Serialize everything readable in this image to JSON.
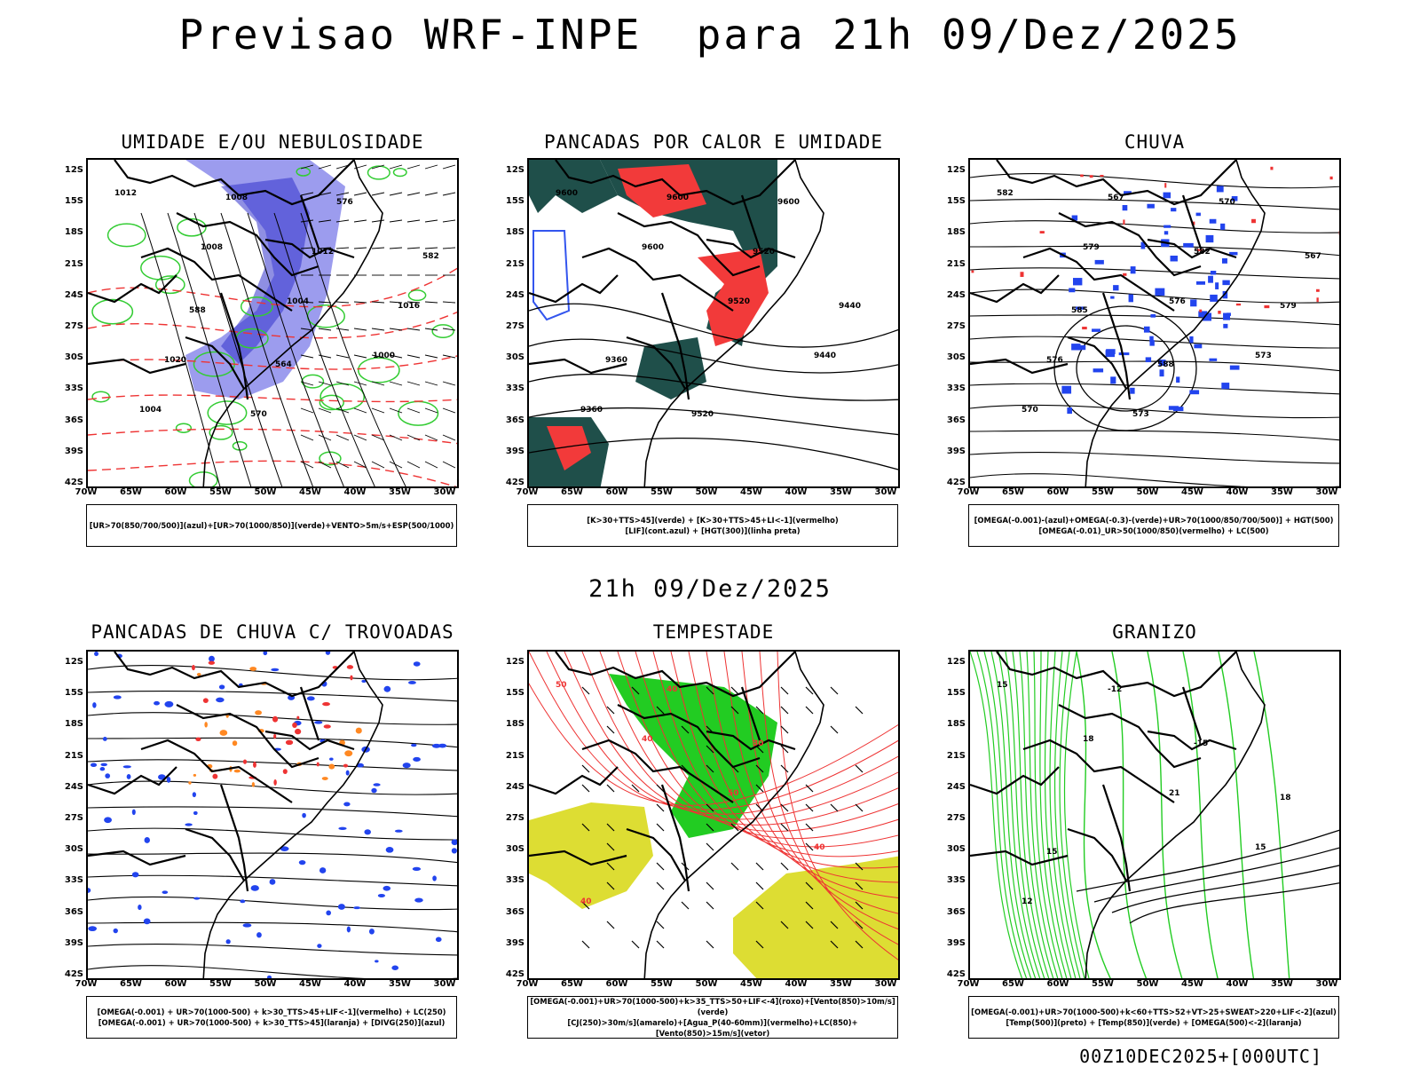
{
  "header": {
    "title": "Previsao WRF-INPE  para 21h 09/Dez/2025",
    "mid_label": "21h 09/Dez/2025",
    "footer": "00Z10DEC2025+[000UTC]"
  },
  "axes": {
    "lat_labels": [
      "12S",
      "15S",
      "18S",
      "21S",
      "24S",
      "27S",
      "30S",
      "33S",
      "36S",
      "39S",
      "42S"
    ],
    "lon_labels": [
      "70W",
      "65W",
      "60W",
      "55W",
      "50W",
      "45W",
      "40W",
      "35W",
      "30W"
    ]
  },
  "panels": [
    {
      "title": "UMIDADE E/OU NEBULOSIDADE",
      "legend": [
        "[UR>70(850/700/500)](azul)+[UR>70(1000/850)](verde)+VENTO>5m/s+ESP(500/1000)"
      ],
      "contour_labels": [
        "1012",
        "1008",
        "1004",
        "1000",
        "1004",
        "1008",
        "1012",
        "1016",
        "1020",
        "570",
        "576",
        "582",
        "588",
        "564"
      ],
      "colors": {
        "fill": "#7b7be8",
        "green": "#33cc33",
        "red": "#ee3333",
        "isobar": "#000000"
      }
    },
    {
      "title": "PANCADAS POR CALOR E UMIDADE",
      "legend": [
        "[K>30+TTS>45](verde) + [K>30+TTS>45+LI<-1](vermelho)",
        "[LIF](cont.azul) + [HGT(300)](linha preta)"
      ],
      "contour_labels": [
        "9600",
        "9600",
        "9520",
        "9440",
        "9360",
        "9600",
        "9520",
        "9440",
        "9360",
        "9520",
        "9600"
      ],
      "colors": {
        "dark": "#1f4f4a",
        "red": "#f23a3a",
        "blue": "#3355ee"
      }
    },
    {
      "title": "CHUVA",
      "legend": [
        "[OMEGA(-0.001)-(azul)+OMEGA(-0.3)-(verde)+UR>70(1000/850/700/500)] + HGT(500)",
        "[OMEGA(-0.01)_UR>50(1000/850)(vermelho) + LC(500)"
      ],
      "contour_labels": [
        "582",
        "579",
        "576",
        "573",
        "570",
        "567",
        "582",
        "579",
        "576",
        "573",
        "570",
        "567",
        "585",
        "588"
      ],
      "colors": {
        "blue": "#2244ee",
        "red": "#ee3333"
      }
    },
    {
      "title": "PANCADAS DE CHUVA C/ TROVOADAS",
      "legend": [
        "[OMEGA(-0.001) + UR>70(1000-500) + k>30_TTS>45+LIF<-1](vermelho) + LC(250)",
        "[OMEGA(-0.001) + UR>70(1000-500) + k>30_TTS>45](laranja) + [DIVG(250)](azul)"
      ],
      "contour_labels": [],
      "colors": {
        "blue": "#2244ee",
        "red": "#ee3333",
        "orange": "#ff8822"
      }
    },
    {
      "title": "TEMPESTADE",
      "legend": [
        "[OMEGA(-0.001)+UR>70(1000-500)+k>35_TTS>50+LIF<-4](roxo)+[Vento(850)>10m/s](verde)",
        "[CJ(250)>30m/s](amarelo)+[Agua_P(40-60mm)](vermelho)+LC(850)+[Vento(850)>15m/s](vetor)"
      ],
      "contour_labels": [
        "50",
        "40",
        "50",
        "40",
        "40",
        "40",
        "30"
      ],
      "colors": {
        "green": "#22cc22",
        "yellow": "#dddd33",
        "red": "#ee3333"
      }
    },
    {
      "title": "GRANIZO",
      "legend": [
        "[OMEGA(-0.001)+UR>70(1000-500)+k<60+TTS>52+VT>25+SWEAT>220+LIF<-2](azul)",
        "[Temp(500)](preto) + [Temp(850)](verde) + [OMEGA(500)<-2](laranja)"
      ],
      "contour_labels": [
        "15",
        "18",
        "21",
        "15",
        "12",
        "-12",
        "-15",
        "18",
        "15"
      ],
      "colors": {
        "green": "#22cc22"
      }
    }
  ]
}
